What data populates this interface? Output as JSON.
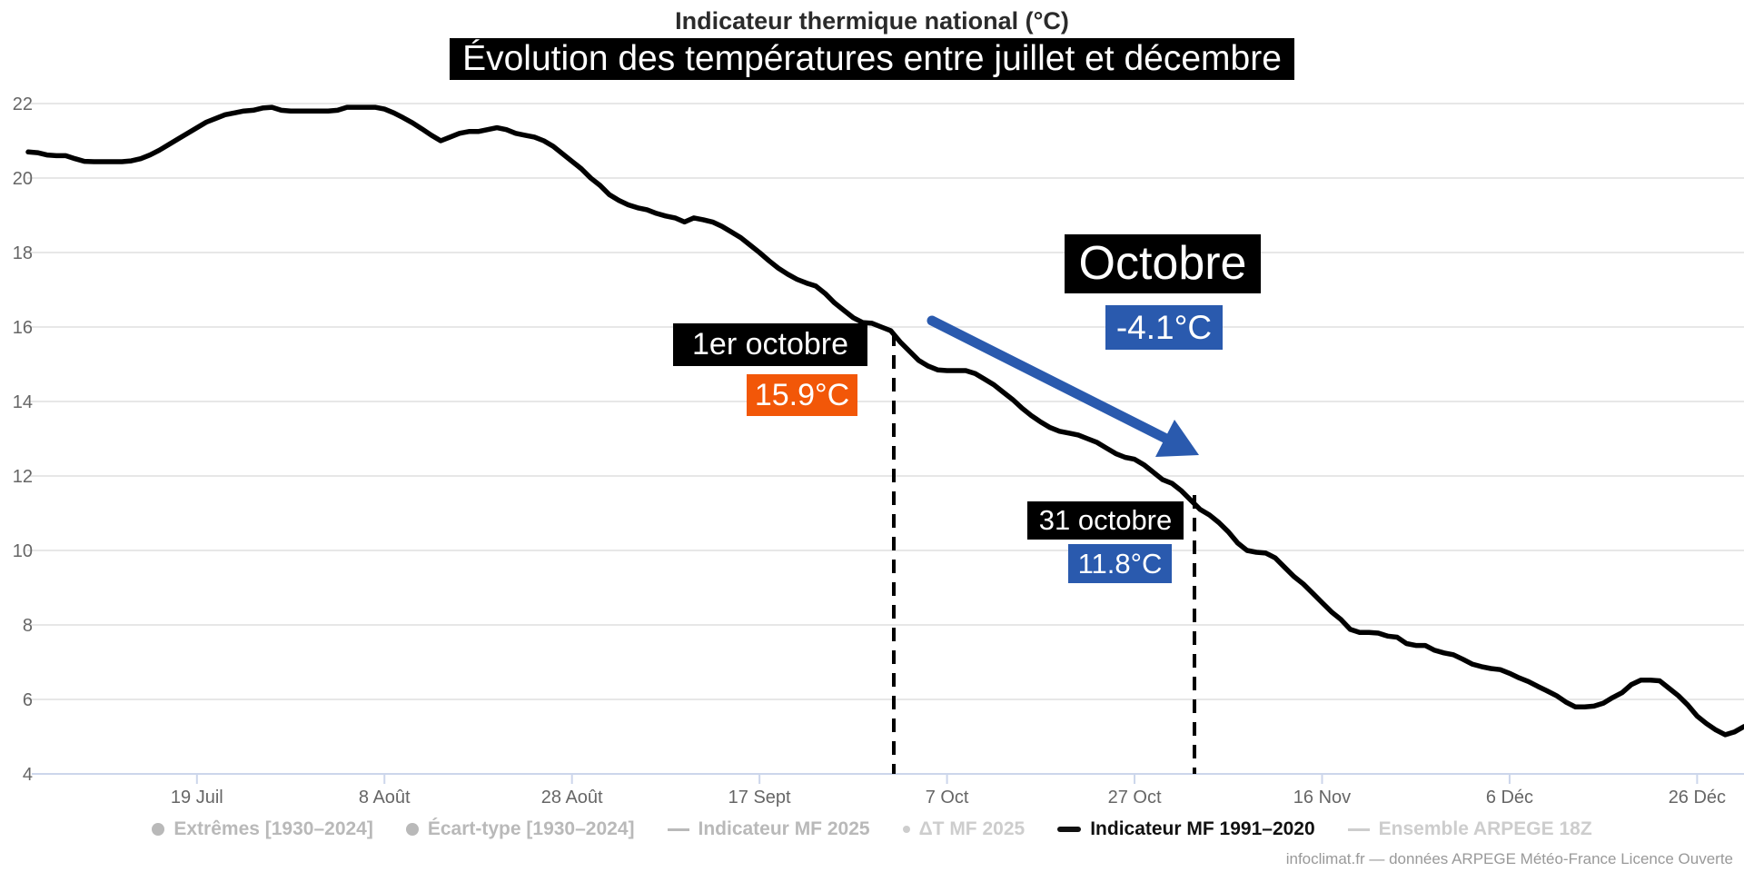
{
  "header": {
    "title": "Indicateur thermique national (°C)",
    "subtitle": "Évolution des températures entre juillet et décembre"
  },
  "footer": {
    "credit": "infoclimat.fr — données ARPEGE Météo-France Licence Ouverte"
  },
  "colors": {
    "accent_orange": "#F25708",
    "accent_blue": "#2A5AAE",
    "line_black": "#000000",
    "grid": "#E7E7E7",
    "axis": "#CCD6EB",
    "tick_label": "#666666",
    "legend_muted": "#B9B9B9",
    "legend_light": "#CDCDCD"
  },
  "chart_data": {
    "type": "line",
    "title": "Indicateur thermique national (°C)",
    "subtitle": "Évolution des températures entre juillet et décembre",
    "ylim": [
      4,
      22
    ],
    "y_ticks": [
      4,
      6,
      8,
      10,
      12,
      14,
      16,
      18,
      20,
      22
    ],
    "grid": "horizontal",
    "x_ticks": [
      {
        "label": "19 Juil",
        "day": 18
      },
      {
        "label": "8 Août",
        "day": 38
      },
      {
        "label": "28 Août",
        "day": 58
      },
      {
        "label": "17 Sept",
        "day": 78
      },
      {
        "label": "7 Oct",
        "day": 98
      },
      {
        "label": "27 Oct",
        "day": 118
      },
      {
        "label": "16 Nov",
        "day": 138
      },
      {
        "label": "6 Déc",
        "day": 158
      },
      {
        "label": "26 Déc",
        "day": 178
      }
    ],
    "x_range_note": "daily values, 1 juillet – 31 décembre",
    "series": [
      {
        "name": "Indicateur MF 1991–2020",
        "color": "#000000",
        "values": [
          20.7,
          20.68,
          20.62,
          20.6,
          20.6,
          20.52,
          20.45,
          20.44,
          20.44,
          20.44,
          20.44,
          20.46,
          20.52,
          20.62,
          20.75,
          20.9,
          21.05,
          21.2,
          21.35,
          21.5,
          21.6,
          21.7,
          21.75,
          21.8,
          21.82,
          21.88,
          21.9,
          21.82,
          21.8,
          21.8,
          21.8,
          21.8,
          21.8,
          21.82,
          21.9,
          21.9,
          21.9,
          21.9,
          21.85,
          21.75,
          21.62,
          21.48,
          21.32,
          21.15,
          21.0,
          21.1,
          21.2,
          21.25,
          21.25,
          21.3,
          21.35,
          21.3,
          21.2,
          21.15,
          21.1,
          21.0,
          20.85,
          20.65,
          20.45,
          20.25,
          20.0,
          19.8,
          19.55,
          19.4,
          19.28,
          19.2,
          19.15,
          19.05,
          18.98,
          18.93,
          18.82,
          18.93,
          18.88,
          18.82,
          18.7,
          18.55,
          18.4,
          18.2,
          18.0,
          17.78,
          17.58,
          17.42,
          17.28,
          17.18,
          17.1,
          16.9,
          16.65,
          16.45,
          16.25,
          16.12,
          16.1,
          16.0,
          15.9,
          15.6,
          15.35,
          15.1,
          14.95,
          14.85,
          14.83,
          14.83,
          14.83,
          14.75,
          14.6,
          14.45,
          14.25,
          14.05,
          13.82,
          13.62,
          13.45,
          13.3,
          13.2,
          13.15,
          13.1,
          13.0,
          12.9,
          12.75,
          12.6,
          12.5,
          12.45,
          12.3,
          12.1,
          11.9,
          11.8,
          11.6,
          11.35,
          11.1,
          10.95,
          10.75,
          10.5,
          10.2,
          10.0,
          9.95,
          9.93,
          9.8,
          9.55,
          9.3,
          9.1,
          8.85,
          8.6,
          8.35,
          8.15,
          7.88,
          7.8,
          7.8,
          7.78,
          7.7,
          7.67,
          7.5,
          7.45,
          7.45,
          7.32,
          7.25,
          7.2,
          7.08,
          6.95,
          6.88,
          6.83,
          6.8,
          6.7,
          6.58,
          6.48,
          6.35,
          6.23,
          6.1,
          5.93,
          5.8,
          5.8,
          5.82,
          5.9,
          6.05,
          6.18,
          6.4,
          6.52,
          6.52,
          6.5,
          6.3,
          6.1,
          5.85,
          5.55,
          5.35,
          5.18,
          5.05,
          5.13,
          5.27
        ]
      }
    ],
    "annotations": [
      {
        "label": "1er octobre",
        "value": "15.9°C",
        "style": "orange"
      },
      {
        "label": "Octobre",
        "value": "-4.1°C",
        "style": "blue"
      },
      {
        "label": "31 octobre",
        "value": "11.8°C",
        "style": "blue"
      }
    ]
  },
  "legend": {
    "items": [
      {
        "label": "Extrêmes [1930–2024]",
        "marker": "circle",
        "state": "muted"
      },
      {
        "label": "Écart-type [1930–2024]",
        "marker": "circle",
        "state": "muted"
      },
      {
        "label": "Indicateur MF 2025",
        "marker": "line",
        "state": "muted"
      },
      {
        "label": "ΔT MF 2025",
        "marker": "dot",
        "state": "muted-light"
      },
      {
        "label": "Indicateur MF 1991–2020",
        "marker": "line-thick",
        "state": "active"
      },
      {
        "label": "Ensemble ARPEGE 18Z",
        "marker": "line-light",
        "state": "muted-light"
      }
    ]
  }
}
